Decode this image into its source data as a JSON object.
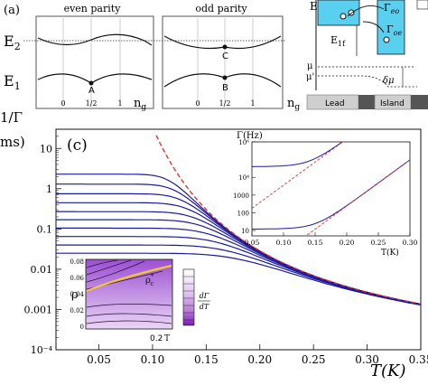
{
  "panel_a": {
    "label": "(a)",
    "even_title": "even parity",
    "odd_title": "odd parity",
    "e2": "E",
    "e2_sub": "2",
    "e1": "E",
    "e1_sub": "1",
    "point_a": "A",
    "point_b": "B",
    "point_c": "C",
    "ng_label": "n",
    "ng_sub": "g",
    "ticks_even": [
      "0",
      "1/2",
      "1"
    ],
    "ticks_odd": [
      "0",
      "1/2",
      "1"
    ]
  },
  "panel_b": {
    "e_label": "E",
    "gamma_eo": "Γ",
    "gamma_eo_sub": "eo",
    "gamma_oe": "Γ",
    "gamma_oe_sub": "oe",
    "e1f": "E",
    "e1f_sub": "1f",
    "mu": "μ",
    "mu_prime": "μ'",
    "delta_mu": "δμ",
    "lead": "Lead",
    "island": "Island"
  },
  "panel_c": {
    "label": "(c)",
    "ylabel_fragment": "1/Γ",
    "ylabel_unit_fragment": "ms)",
    "xlabel": "T(K)",
    "x_ticks": [
      "0.05",
      "0.10",
      "0.15",
      "0.20",
      "0.25",
      "0.30",
      "0.35"
    ],
    "y_ticks": [
      "10",
      "1",
      "0.1",
      "0.01",
      "0.001",
      "10⁻⁴"
    ]
  },
  "inset_right": {
    "ylabel": "Γ(Hz)",
    "xlabel": "T(K)",
    "x_ticks": [
      "0.05",
      "0.10",
      "0.15",
      "0.20",
      "0.25",
      "0.30"
    ],
    "y_ticks": [
      "10⁶",
      "10⁴",
      "1000",
      "100",
      "10"
    ]
  },
  "inset_left": {
    "ylabel": "ρ",
    "xlabel": "T",
    "x_tick_end": "0.2",
    "y_ticks": [
      "0.08",
      "0.06",
      "0.04",
      "0.02",
      "0"
    ],
    "rho_c": "ρ",
    "rho_c_sup": "*",
    "rho_c_sub": "c",
    "colorbar_num": "dΓ",
    "colorbar_den": "dT"
  },
  "chart_data": {
    "type": "line",
    "title": "",
    "xlabel": "T(K)",
    "ylabel": "1/Γ (ms)",
    "y_scale": "log",
    "xlim": [
      0.01,
      0.35
    ],
    "ylim": [
      0.0001,
      30
    ],
    "series": [
      {
        "plateau": 2.3
      },
      {
        "plateau": 1.3
      },
      {
        "plateau": 0.75
      },
      {
        "plateau": 0.45
      },
      {
        "plateau": 0.27
      },
      {
        "plateau": 0.17
      },
      {
        "plateau": 0.105
      },
      {
        "plateau": 0.065
      },
      {
        "plateau": 0.04
      },
      {
        "plateau": 0.025
      }
    ],
    "activation_asymptote": {
      "style": "dashed",
      "color": "#e03030"
    },
    "line_color": "#1a1aa0",
    "inset_right": {
      "xlim": [
        0.05,
        0.3
      ],
      "y_scale": "log",
      "ylim": [
        5,
        1000000
      ]
    }
  }
}
